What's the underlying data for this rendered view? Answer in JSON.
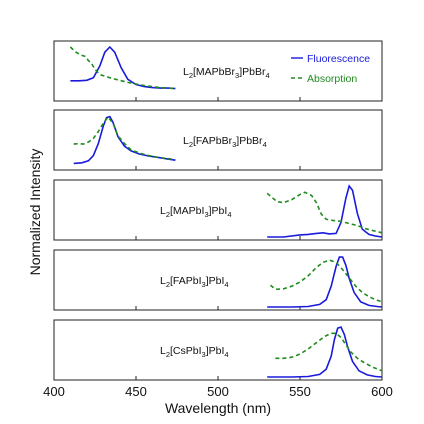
{
  "chart_data": {
    "type": "line",
    "xlabel": "Wavelength (nm)",
    "ylabel": "Normalized Intensity",
    "xlim": [
      400,
      600
    ],
    "xticks": [
      "400",
      "450",
      "500",
      "550",
      "600"
    ],
    "grid": false,
    "legend": {
      "placement": "top-right of first panel",
      "entries": [
        {
          "label": "Fluorescence",
          "color": "#1a1adb",
          "style": "solid"
        },
        {
          "label": "Absorption",
          "color": "#1e8c1e",
          "style": "dashed"
        }
      ]
    },
    "panels": [
      {
        "label_parts": [
          "L",
          "2",
          "[MAPbBr",
          "3",
          "]PbBr",
          "4"
        ],
        "series": [
          {
            "name": "Fluorescence",
            "color": "#1a1adb",
            "x": [
              410,
              415,
              420,
              424,
              428,
              431,
              434,
              437,
              441,
              445,
              450,
              455,
              460,
              465,
              470,
              474
            ],
            "y": [
              0.33,
              0.33,
              0.34,
              0.39,
              0.62,
              0.88,
              0.98,
              0.88,
              0.58,
              0.36,
              0.26,
              0.22,
              0.2,
              0.19,
              0.19,
              0.18
            ]
          },
          {
            "name": "Absorption",
            "color": "#1e8c1e",
            "x": [
              410,
              413,
              416,
              419,
              421,
              423,
              425,
              428,
              431,
              435,
              440,
              445,
              450,
              455,
              460,
              465,
              470,
              474
            ],
            "y": [
              0.98,
              0.89,
              0.83,
              0.8,
              0.72,
              0.66,
              0.55,
              0.45,
              0.42,
              0.38,
              0.34,
              0.3,
              0.27,
              0.24,
              0.22,
              0.2,
              0.19,
              0.18
            ]
          }
        ]
      },
      {
        "label_parts": [
          "L",
          "2",
          "[FAPbBr",
          "3",
          "]PbBr",
          "4"
        ],
        "series": [
          {
            "name": "Fluorescence",
            "color": "#1a1adb",
            "x": [
              412,
              417,
              421,
              424,
              427,
              430,
              432,
              434,
              436,
              439,
              443,
              447,
              452,
              458,
              464,
              470,
              474
            ],
            "y": [
              0.07,
              0.08,
              0.12,
              0.22,
              0.45,
              0.78,
              0.95,
              0.97,
              0.86,
              0.58,
              0.4,
              0.31,
              0.25,
              0.21,
              0.18,
              0.15,
              0.13
            ]
          },
          {
            "name": "Absorption",
            "color": "#1e8c1e",
            "x": [
              412,
              415,
              418,
              421,
              424,
              427,
              430,
              433,
              436,
              439,
              443,
              447,
              452,
              458,
              464,
              470,
              474
            ],
            "y": [
              0.44,
              0.45,
              0.44,
              0.48,
              0.55,
              0.68,
              0.84,
              0.96,
              0.84,
              0.6,
              0.45,
              0.33,
              0.27,
              0.22,
              0.18,
              0.16,
              0.14
            ]
          }
        ]
      },
      {
        "label_parts": [
          "L",
          "2",
          "[MAPbI",
          "3",
          "]PbI",
          "4"
        ],
        "series": [
          {
            "name": "Fluorescence",
            "color": "#1a1adb",
            "x": [
              530,
              540,
              550,
              555,
              560,
              564,
              568,
              572,
              575,
              578,
              580,
              582,
              585,
              588,
              592,
              596,
              600
            ],
            "y": [
              0.0,
              0.0,
              0.04,
              0.05,
              0.07,
              0.08,
              0.06,
              0.07,
              0.28,
              0.75,
              0.98,
              0.9,
              0.45,
              0.15,
              0.05,
              0.02,
              0.0
            ]
          },
          {
            "name": "Absorption",
            "color": "#1e8c1e",
            "x": [
              530,
              533,
              536,
              540,
              545,
              550,
              553,
              557,
              560,
              563,
              566,
              570,
              575,
              580,
              585,
              590,
              595,
              600
            ],
            "y": [
              0.84,
              0.76,
              0.68,
              0.66,
              0.72,
              0.82,
              0.86,
              0.8,
              0.66,
              0.44,
              0.34,
              0.32,
              0.3,
              0.26,
              0.22,
              0.16,
              0.12,
              0.08
            ]
          }
        ]
      },
      {
        "label_parts": [
          "L",
          "2",
          "[FAPbI",
          "3",
          "]PbI",
          "4"
        ],
        "series": [
          {
            "name": "Fluorescence",
            "color": "#1a1adb",
            "x": [
              530,
              545,
              555,
              562,
              566,
              569,
              572,
              574,
              576,
              578,
              580,
              583,
              587,
              592,
              597,
              600
            ],
            "y": [
              0.0,
              0.0,
              0.01,
              0.05,
              0.14,
              0.4,
              0.78,
              0.96,
              0.96,
              0.8,
              0.55,
              0.28,
              0.1,
              0.03,
              0.01,
              0.0
            ]
          },
          {
            "name": "Absorption",
            "color": "#1e8c1e",
            "x": [
              532,
              535,
              540,
              545,
              550,
              555,
              560,
              564,
              568,
              572,
              576,
              580,
              584,
              588,
              592,
              596,
              600
            ],
            "y": [
              0.42,
              0.34,
              0.35,
              0.4,
              0.48,
              0.6,
              0.76,
              0.86,
              0.9,
              0.86,
              0.72,
              0.56,
              0.4,
              0.28,
              0.2,
              0.14,
              0.1
            ]
          }
        ]
      },
      {
        "label_parts": [
          "L",
          "2",
          "[CsPbI",
          "3",
          "]PbI",
          "4"
        ],
        "series": [
          {
            "name": "Fluorescence",
            "color": "#1a1adb",
            "x": [
              530,
              545,
              555,
              562,
              566,
              569,
              571,
              573,
              575,
              577,
              579,
              582,
              586,
              591,
              596,
              600
            ],
            "y": [
              0.0,
              0.0,
              0.01,
              0.05,
              0.15,
              0.4,
              0.72,
              0.94,
              0.96,
              0.82,
              0.58,
              0.3,
              0.12,
              0.04,
              0.01,
              0.0
            ]
          },
          {
            "name": "Absorption",
            "color": "#1e8c1e",
            "x": [
              535,
              540,
              545,
              550,
              555,
              560,
              565,
              569,
              572,
              575,
              578,
              581,
              585,
              590,
              595,
              600
            ],
            "y": [
              0.36,
              0.36,
              0.38,
              0.44,
              0.54,
              0.66,
              0.78,
              0.84,
              0.84,
              0.76,
              0.62,
              0.48,
              0.36,
              0.26,
              0.18,
              0.12
            ]
          }
        ]
      }
    ]
  }
}
